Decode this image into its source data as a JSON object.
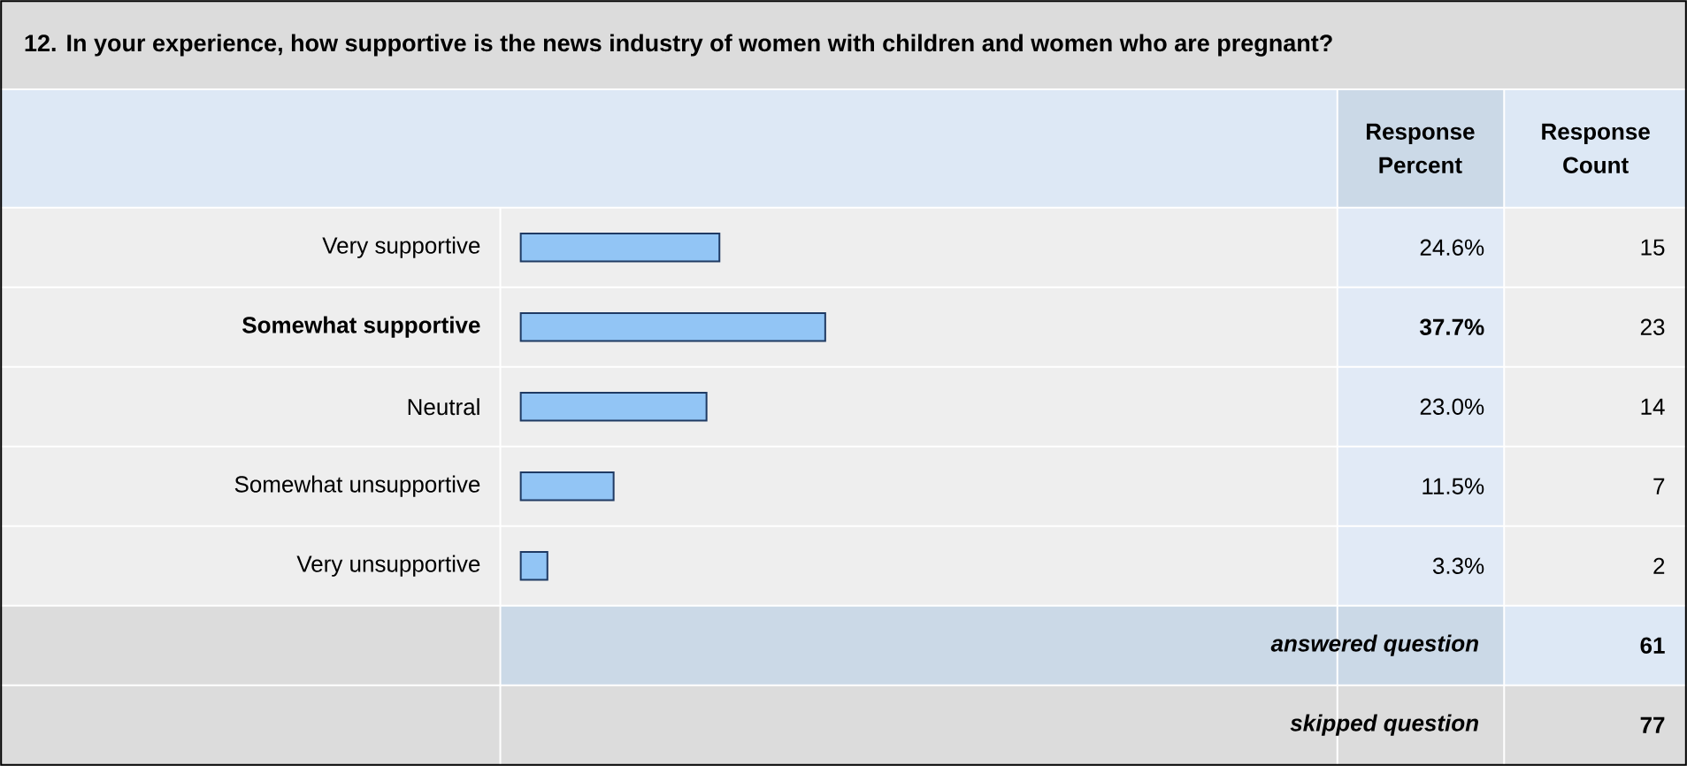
{
  "chart_data": {
    "type": "bar",
    "orientation": "horizontal",
    "title": "12. In your experience, how supportive is the news industry of women with children and women who are pregnant?",
    "categories": [
      "Very supportive",
      "Somewhat supportive",
      "Neutral",
      "Somewhat unsupportive",
      "Very unsupportive"
    ],
    "values": [
      24.6,
      37.7,
      23.0,
      11.5,
      3.3
    ],
    "value_labels": [
      "24.6%",
      "37.7%",
      "23.0%",
      "11.5%",
      "3.3%"
    ],
    "color": "#92c5f5",
    "tick_labels": false,
    "annotations": [
      "Response Percent",
      "Response Count",
      "15",
      "23",
      "14",
      "7",
      "2",
      "answered question",
      "61",
      "skipped question",
      "77"
    ]
  }
}
